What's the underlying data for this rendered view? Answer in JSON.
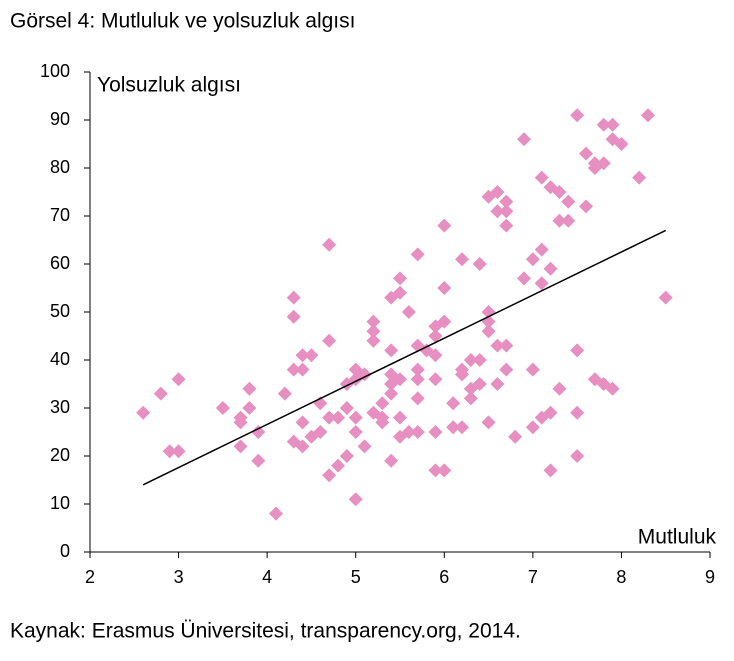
{
  "chart_data": {
    "type": "scatter",
    "title": "Görsel 4: Mutluluk ve yolsuzluk algısı",
    "y_label": "Yolsuzluk algısı",
    "x_label": "Mutluluk",
    "source": "Kaynak: Erasmus Üniversitesi, transparency.org, 2014.",
    "color": "#e68fc0",
    "x": [
      2.6,
      2.8,
      3.0,
      2.9,
      3.0,
      3.5,
      3.7,
      3.7,
      3.8,
      3.8,
      3.7,
      3.9,
      3.9,
      4.1,
      4.2,
      4.3,
      4.3,
      4.3,
      4.4,
      4.5,
      4.4,
      4.4,
      4.3,
      4.4,
      4.5,
      4.6,
      4.6,
      4.7,
      4.7,
      4.7,
      4.7,
      4.8,
      4.8,
      4.9,
      4.9,
      4.9,
      5.0,
      5.0,
      5.05,
      5.0,
      5.0,
      5.0,
      5.1,
      5.1,
      5.2,
      5.2,
      5.2,
      5.2,
      5.3,
      5.3,
      5.3,
      5.4,
      5.4,
      5.4,
      5.4,
      5.4,
      5.4,
      5.5,
      5.5,
      5.5,
      5.5,
      5.5,
      5.6,
      5.6,
      5.7,
      5.7,
      5.7,
      5.7,
      5.7,
      5.7,
      5.8,
      5.9,
      5.9,
      5.9,
      5.9,
      5.9,
      5.9,
      6.0,
      6.0,
      6.0,
      6.0,
      6.1,
      6.1,
      6.2,
      6.2,
      6.2,
      6.2,
      6.3,
      6.3,
      6.3,
      6.4,
      6.4,
      6.4,
      6.5,
      6.5,
      6.5,
      6.5,
      6.5,
      6.6,
      6.6,
      6.6,
      6.6,
      6.7,
      6.7,
      6.7,
      6.7,
      6.7,
      6.8,
      6.9,
      6.9,
      7.0,
      7.0,
      7.0,
      7.1,
      7.2,
      7.3,
      7.4,
      7.4,
      7.3,
      7.1,
      7.2,
      7.1,
      7.1,
      7.2,
      7.2,
      7.3,
      7.5,
      7.5,
      7.5,
      7.5,
      7.6,
      7.6,
      7.7,
      7.8,
      7.7,
      7.7,
      7.8,
      7.9,
      7.8,
      7.9,
      7.9,
      8.0,
      8.2,
      8.3,
      8.5
    ],
    "values": [
      29,
      33,
      36,
      21,
      21,
      30,
      28,
      27,
      30,
      34,
      22,
      25,
      19,
      8,
      33,
      53,
      49,
      38,
      41,
      41,
      38,
      27,
      23,
      22,
      24,
      25,
      31,
      64,
      44,
      28,
      16,
      18,
      28,
      30,
      35,
      20,
      36,
      38,
      37,
      28,
      25,
      11,
      22,
      37,
      48,
      46,
      44,
      29,
      27,
      28,
      31,
      53,
      42,
      37,
      35,
      33,
      19,
      57,
      54,
      36,
      28,
      24,
      50,
      25,
      62,
      43,
      38,
      36,
      32,
      25,
      42,
      47,
      45,
      41,
      36,
      25,
      17,
      48,
      68,
      55,
      17,
      31,
      26,
      61,
      38,
      37,
      26,
      40,
      34,
      32,
      60,
      40,
      35,
      74,
      50,
      46,
      27,
      48,
      75,
      43,
      35,
      71,
      73,
      71,
      68,
      43,
      38,
      24,
      86,
      57,
      38,
      26,
      61,
      78,
      76,
      75,
      73,
      69,
      69,
      63,
      59,
      56,
      28,
      29,
      17,
      34,
      91,
      42,
      29,
      20,
      72,
      83,
      81,
      81,
      80,
      36,
      35,
      34,
      89,
      89,
      86,
      85,
      78,
      91,
      53
    ],
    "trendline": {
      "x": [
        2.6,
        8.5
      ],
      "values": [
        14,
        67
      ],
      "color": "#000000"
    },
    "xlim": [
      2,
      9
    ],
    "ylim": [
      0,
      100
    ],
    "xticks": [
      2,
      3,
      4,
      5,
      6,
      7,
      8,
      9
    ],
    "yticks": [
      0,
      10,
      20,
      30,
      40,
      50,
      60,
      70,
      80,
      90,
      100
    ]
  }
}
